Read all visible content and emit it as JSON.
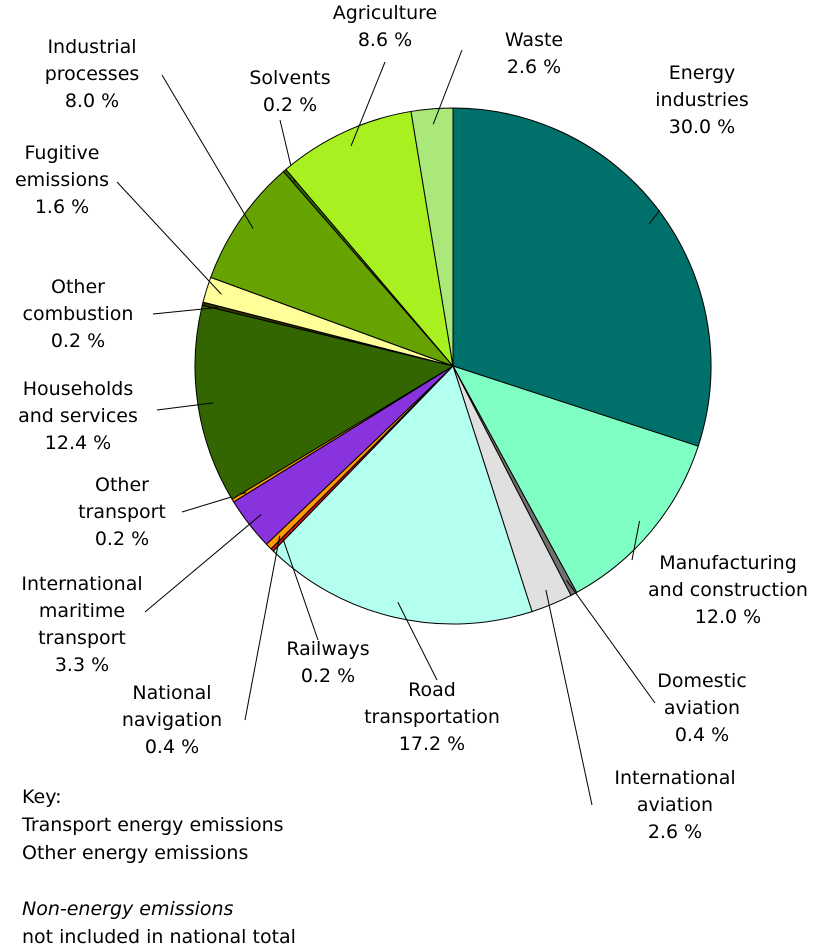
{
  "chart_data": {
    "type": "pie",
    "categories": [
      "Energy industries",
      "Manufacturing and construction",
      "Domestic aviation",
      "International aviation",
      "Road transportation",
      "Railways",
      "National navigation",
      "International maritime transport",
      "Other transport",
      "Households and services",
      "Other combustion",
      "Fugitive emissions",
      "Industrial processes",
      "Solvents",
      "Agriculture",
      "Waste"
    ],
    "values": [
      30.0,
      12.0,
      0.4,
      2.6,
      17.2,
      0.2,
      0.4,
      3.3,
      0.2,
      12.4,
      0.2,
      1.6,
      8.0,
      0.2,
      8.6,
      2.6
    ],
    "value_labels": [
      "30.0 %",
      "12.0 %",
      "0.4 %",
      "2.6 %",
      "17.2 %",
      "0.2 %",
      "0.4 %",
      "3.3 %",
      "0.2 %",
      "12.4 %",
      "0.2 %",
      "1.6 %",
      "8.0 %",
      "0.2 %",
      "8.6 %",
      "2.6 %"
    ],
    "colors": [
      "#00706a",
      "#80ffc4",
      "#707070",
      "#e0e0e0",
      "#b3fff0",
      "#cc1111",
      "#ff9900",
      "#8833dd",
      "#ff9900",
      "#336600",
      "#333300",
      "#ffff99",
      "#66a300",
      "#336600",
      "#a8f020",
      "#aae87a"
    ],
    "key": {
      "title": "Key:",
      "items": [
        "Transport energy emissions",
        "Other energy emissions"
      ],
      "note": [
        "Non-energy emissions",
        "not included in national total"
      ]
    }
  }
}
